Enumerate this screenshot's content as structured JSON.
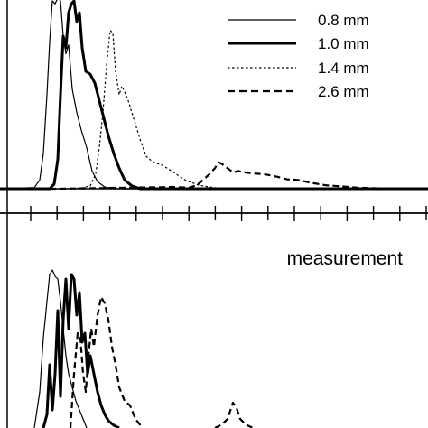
{
  "chart_data": [
    {
      "type": "line",
      "panel": "top",
      "title": "",
      "xlabel": "",
      "ylabel": "",
      "x_ticks": 16,
      "grid": false,
      "legend": "top-right",
      "series": [
        {
          "name": "0.8 mm",
          "style": "thin-solid",
          "x": [
            0,
            38,
            44,
            48,
            52,
            55,
            58,
            61,
            64,
            67,
            70,
            73,
            76,
            80,
            85,
            90,
            96,
            102,
            108,
            116,
            126,
            140,
            474
          ],
          "y": [
            0,
            2,
            15,
            60,
            160,
            250,
            320,
            315,
            325,
            320,
            260,
            230,
            245,
            170,
            130,
            100,
            70,
            30,
            12,
            3,
            0,
            0,
            0
          ]
        },
        {
          "name": "1.0 mm",
          "style": "thick-solid",
          "x": [
            0,
            55,
            60,
            64,
            67,
            70,
            73,
            76,
            79,
            82,
            85,
            88,
            91,
            95,
            100,
            105,
            110,
            115,
            120,
            126,
            132,
            138,
            146,
            155,
            474
          ],
          "y": [
            0,
            0,
            8,
            50,
            160,
            260,
            240,
            300,
            315,
            320,
            285,
            300,
            240,
            200,
            195,
            180,
            150,
            120,
            90,
            60,
            35,
            15,
            5,
            0,
            0
          ]
        },
        {
          "name": "1.4 mm",
          "style": "dotted",
          "x": [
            0,
            70,
            90,
            100,
            106,
            110,
            114,
            118,
            122,
            125,
            128,
            132,
            135,
            138,
            142,
            146,
            150,
            156,
            162,
            170,
            180,
            192,
            205,
            220,
            232,
            245,
            260,
            474
          ],
          "y": [
            0,
            0,
            1,
            5,
            25,
            70,
            130,
            210,
            270,
            265,
            200,
            160,
            175,
            165,
            150,
            130,
            110,
            80,
            55,
            45,
            40,
            28,
            15,
            6,
            3,
            0,
            0,
            0
          ]
        },
        {
          "name": "2.6 mm",
          "style": "dashed",
          "x": [
            0,
            60,
            110,
            150,
            190,
            210,
            218,
            225,
            232,
            238,
            242,
            246,
            252,
            258,
            264,
            270,
            280,
            292,
            305,
            318,
            330,
            345,
            360,
            378,
            395,
            410,
            430,
            474
          ],
          "y": [
            0,
            0,
            1,
            2,
            3,
            2,
            6,
            15,
            25,
            35,
            45,
            42,
            35,
            28,
            30,
            28,
            26,
            25,
            21,
            16,
            15,
            10,
            6,
            4,
            2,
            1,
            0,
            0
          ]
        }
      ]
    },
    {
      "type": "line",
      "panel": "bottom",
      "title": "measurement",
      "xlabel": "",
      "ylabel": "",
      "grid": false,
      "series": [
        {
          "style": "thin-solid",
          "x": [
            38,
            44,
            48,
            52,
            55,
            58,
            61,
            64,
            67,
            70,
            73,
            76,
            80,
            84,
            88,
            92,
            96
          ],
          "y": [
            0,
            40,
            100,
            140,
            170,
            175,
            168,
            165,
            140,
            110,
            80,
            60,
            45,
            30,
            20,
            10,
            0
          ]
        },
        {
          "style": "thick-solid",
          "x": [
            48,
            52,
            55,
            58,
            61,
            64,
            67,
            70,
            73,
            76,
            79,
            82,
            85,
            88,
            91,
            94,
            97,
            100,
            104,
            108,
            112,
            116,
            120,
            126,
            132
          ],
          "y": [
            0,
            15,
            70,
            20,
            60,
            130,
            35,
            120,
            165,
            110,
            170,
            165,
            125,
            150,
            95,
            105,
            60,
            80,
            60,
            40,
            25,
            15,
            8,
            3,
            0
          ]
        },
        {
          "style": "dashed",
          "x": [
            78,
            82,
            86,
            89,
            92,
            95,
            98,
            101,
            104,
            108,
            112,
            116,
            120,
            124,
            128,
            132,
            138,
            144,
            150,
            158
          ],
          "y": [
            0,
            60,
            105,
            100,
            60,
            40,
            80,
            110,
            90,
            125,
            145,
            138,
            120,
            90,
            70,
            45,
            30,
            25,
            10,
            0
          ]
        },
        {
          "style": "dashed",
          "x": [
            238,
            246,
            252,
            258,
            262,
            266,
            272,
            280
          ],
          "y": [
            0,
            4,
            10,
            28,
            22,
            10,
            4,
            0
          ]
        }
      ]
    }
  ]
}
